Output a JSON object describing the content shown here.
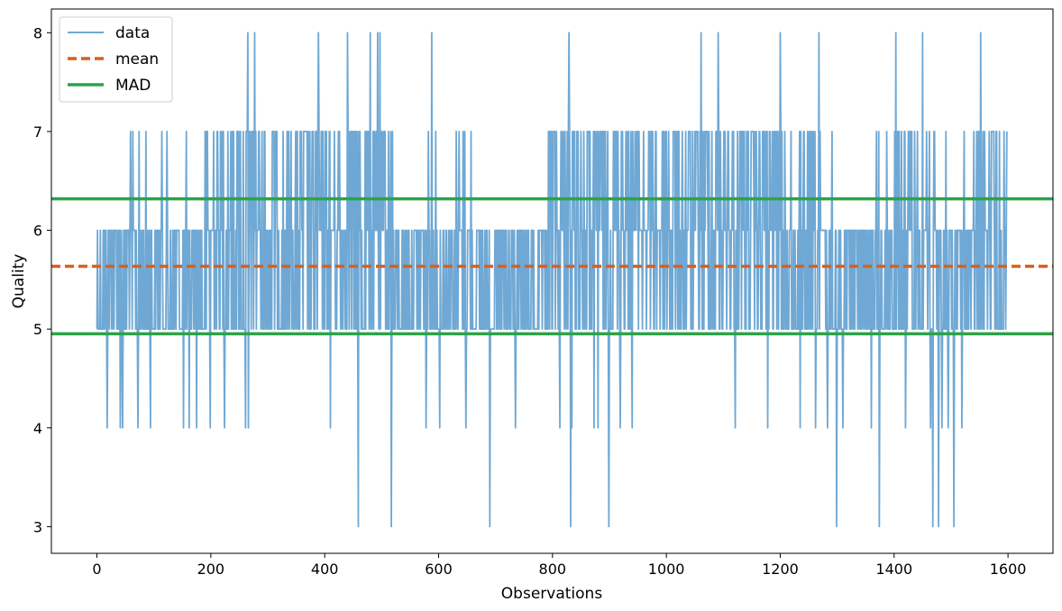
{
  "chart_data": {
    "type": "line",
    "title": "",
    "xlabel": "Observations",
    "ylabel": "Quality",
    "xlim": [
      -80,
      1679
    ],
    "ylim": [
      2.73,
      8.24
    ],
    "x_ticks": [
      0,
      200,
      400,
      600,
      800,
      1000,
      1200,
      1400,
      1600
    ],
    "y_ticks": [
      3,
      4,
      5,
      6,
      7,
      8
    ],
    "grid": false,
    "legend_position": "top-left",
    "series": [
      {
        "name": "data",
        "kind": "line",
        "color": "#6fa8d4",
        "x_range": [
          0,
          1598
        ],
        "n_points": 1599,
        "allowed_values": [
          3,
          4,
          5,
          6,
          7,
          8
        ],
        "notable_points": {
          "8": [
            265,
            277,
            389,
            440,
            480,
            493,
            497,
            588,
            829,
            1061,
            1091,
            1200,
            1268,
            1403,
            1450,
            1552
          ],
          "3": [
            459,
            517,
            690,
            832,
            899,
            1299,
            1374,
            1468,
            1478,
            1505
          ],
          "4": [
            18,
            41,
            45,
            72,
            94,
            152,
            162,
            175,
            199,
            224,
            261,
            266,
            410,
            578,
            602,
            648,
            735,
            813,
            834,
            873,
            880,
            919,
            940,
            1121,
            1178,
            1235,
            1262,
            1283,
            1310,
            1360,
            1420,
            1464,
            1484,
            1495,
            1519
          ]
        }
      },
      {
        "name": "mean",
        "kind": "hline",
        "value": 5.636,
        "color": "#d95f1e",
        "style": "dashed"
      },
      {
        "name": "MAD",
        "kind": "hline",
        "values": [
          4.953,
          6.319
        ],
        "color": "#2ca34a",
        "style": "solid"
      }
    ]
  }
}
